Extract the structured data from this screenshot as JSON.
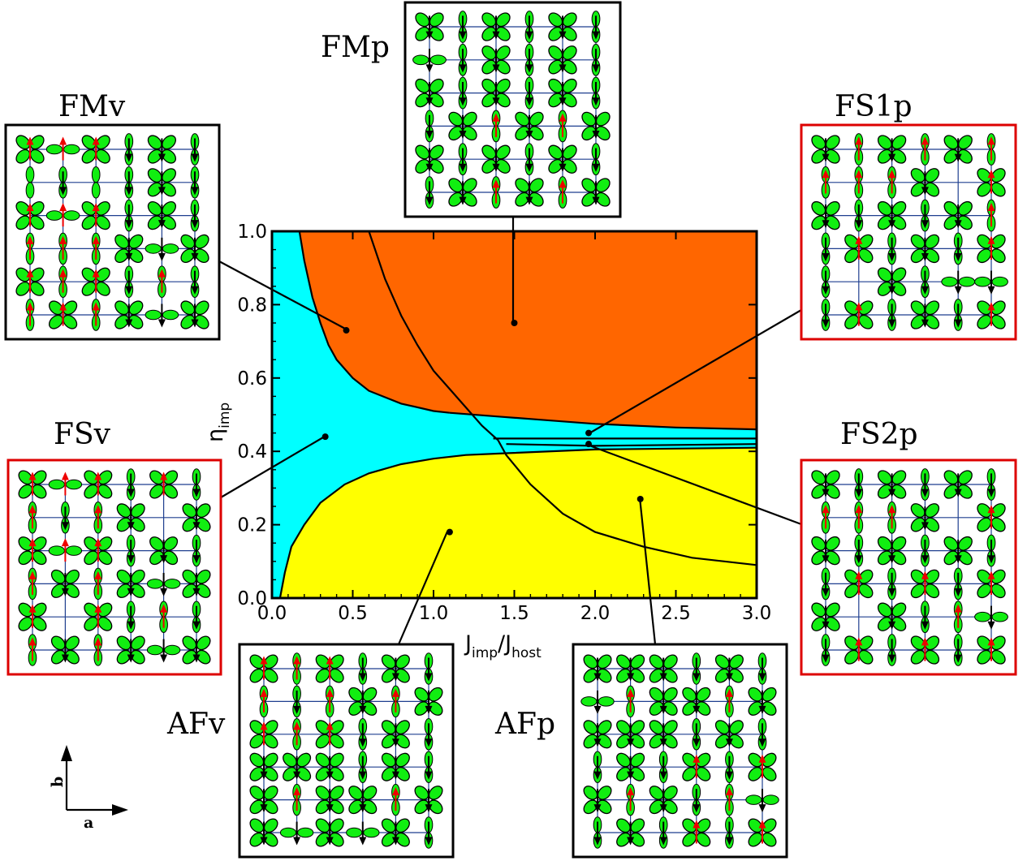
{
  "colors": {
    "fmp_region": "#ff6600",
    "fs_region": "#00ffff",
    "af_region": "#ffff00",
    "orbital": "#11ee11",
    "spin_up": "#ee0000",
    "spin_down": "#000000",
    "frustrated_frame": "#dd0000",
    "ordered_frame": "#000000"
  },
  "chart_data": {
    "type": "phase-diagram",
    "xlabel": "J",
    "xlabel_sub_imp": "imp",
    "xlabel_slash": "/J",
    "xlabel_sub_host": "host",
    "ylabel": "η",
    "ylabel_sub": "imp",
    "xlim": [
      0,
      3
    ],
    "ylim": [
      0,
      1
    ],
    "xticks": [
      "0.0",
      "0.5",
      "1.0",
      "1.5",
      "2.0",
      "2.5",
      "3.0"
    ],
    "yticks": [
      "0.0",
      "0.2",
      "0.4",
      "0.6",
      "0.8",
      "1.0"
    ],
    "regions": [
      {
        "name": "FMp",
        "color": "#ff6600"
      },
      {
        "name": "FS",
        "color": "#00ffff"
      },
      {
        "name": "AF",
        "color": "#ffff00"
      }
    ],
    "phase_markers": [
      {
        "label": "FMv",
        "x": 0.46,
        "y": 0.73
      },
      {
        "label": "FMp",
        "x": 1.5,
        "y": 0.75
      },
      {
        "label": "FS1p",
        "x": 1.96,
        "y": 0.45
      },
      {
        "label": "FSv",
        "x": 0.33,
        "y": 0.44
      },
      {
        "label": "FS2p",
        "x": 1.96,
        "y": 0.42
      },
      {
        "label": "AFv",
        "x": 1.1,
        "y": 0.18
      },
      {
        "label": "AFp",
        "x": 2.28,
        "y": 0.27
      }
    ],
    "boundaries": {
      "fs_fm_upper": [
        [
          0.17,
          1.0
        ],
        [
          0.2,
          0.92
        ],
        [
          0.25,
          0.82
        ],
        [
          0.3,
          0.75
        ],
        [
          0.35,
          0.69
        ],
        [
          0.4,
          0.65
        ],
        [
          0.5,
          0.6
        ],
        [
          0.6,
          0.565
        ],
        [
          0.8,
          0.53
        ],
        [
          1.0,
          0.51
        ],
        [
          1.1,
          0.505
        ]
      ],
      "fm_upper_inner": [
        [
          1.1,
          0.505
        ],
        [
          1.4,
          0.495
        ],
        [
          1.7,
          0.485
        ],
        [
          2.0,
          0.475
        ],
        [
          2.5,
          0.465
        ],
        [
          3.0,
          0.46
        ]
      ],
      "line_04": [
        [
          1.37,
          0.435
        ],
        [
          3.0,
          0.435
        ]
      ],
      "line_042": [
        [
          1.45,
          0.42
        ],
        [
          2.0,
          0.415
        ],
        [
          3.0,
          0.42
        ]
      ],
      "af_boundary": [
        [
          0.05,
          0.0
        ],
        [
          0.08,
          0.07
        ],
        [
          0.12,
          0.14
        ],
        [
          0.2,
          0.2
        ],
        [
          0.3,
          0.26
        ],
        [
          0.45,
          0.31
        ],
        [
          0.6,
          0.34
        ],
        [
          0.8,
          0.365
        ],
        [
          1.0,
          0.38
        ],
        [
          1.2,
          0.39
        ],
        [
          1.45,
          0.395
        ],
        [
          2.0,
          0.405
        ],
        [
          3.0,
          0.41
        ]
      ],
      "vp_divider_upper": [
        [
          0.6,
          1.0
        ],
        [
          0.7,
          0.87
        ],
        [
          0.8,
          0.77
        ],
        [
          0.9,
          0.69
        ],
        [
          1.0,
          0.62
        ],
        [
          1.1,
          0.57
        ],
        [
          1.2,
          0.52
        ],
        [
          1.3,
          0.47
        ],
        [
          1.4,
          0.43
        ]
      ],
      "vp_divider_lower": [
        [
          1.4,
          0.43
        ],
        [
          1.45,
          0.39
        ],
        [
          1.6,
          0.31
        ],
        [
          1.8,
          0.23
        ],
        [
          2.0,
          0.18
        ],
        [
          2.3,
          0.14
        ],
        [
          2.6,
          0.11
        ],
        [
          3.0,
          0.09
        ]
      ]
    }
  },
  "insets": {
    "fmv": "FMv",
    "fmp": "FMp",
    "fs1p": "FS1p",
    "fsv": "FSv",
    "fs2p": "FS2p",
    "afv": "AFv",
    "afp": "AFp"
  },
  "axes_legend": {
    "b": "b",
    "a": "a"
  },
  "frustration_symbol": "?"
}
